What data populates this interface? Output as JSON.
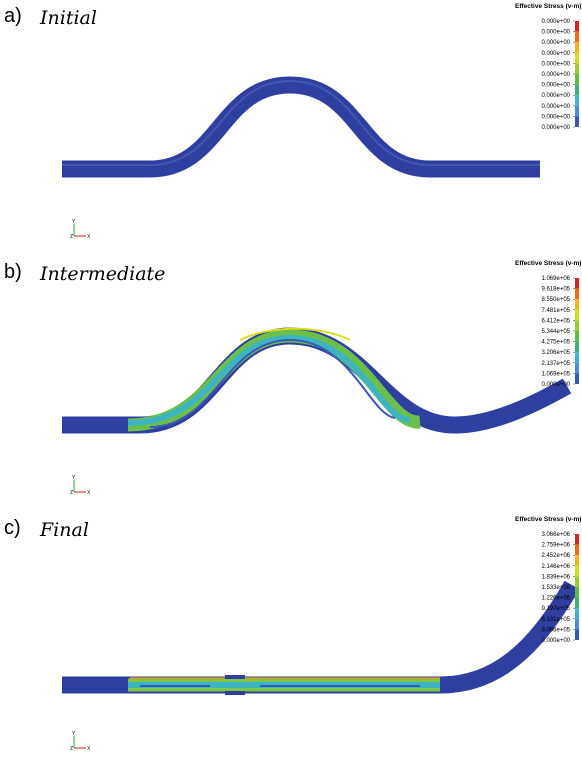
{
  "panels": [
    {
      "label": "a)",
      "title": "Initial",
      "legend": {
        "title": "Effective Stress (v-m)",
        "ticks": [
          "0.000e+00",
          "0.000e+00",
          "0.000e+00",
          "0.000e+00",
          "0.000e+00",
          "0.000e+00",
          "0.000e+00",
          "0.000e+00",
          "0.000e+00",
          "0.000e+00",
          "0.000e+00"
        ]
      },
      "axes": {
        "y": "Y",
        "z": "Z",
        "x": "X"
      }
    },
    {
      "label": "b)",
      "title": "Intermediate",
      "legend": {
        "title": "Effective Stress (v-m)",
        "ticks": [
          "1.069e+06",
          "9.618e+05",
          "8.550e+05",
          "7.481e+05",
          "6.412e+05",
          "5.344e+05",
          "4.275e+05",
          "3.206e+05",
          "2.137e+05",
          "1.069e+05",
          "0.000e+00"
        ]
      },
      "axes": {
        "y": "Y",
        "z": "Z",
        "x": "X"
      }
    },
    {
      "label": "c)",
      "title": "Final",
      "legend": {
        "title": "Effective Stress (v-m)",
        "ticks": [
          "3.066e+06",
          "2.759e+06",
          "2.452e+06",
          "2.146e+06",
          "1.839e+06",
          "1.533e+06",
          "1.226e+06",
          "9.197e+05",
          "6.131e+05",
          "3.066e+05",
          "0.000e+00"
        ]
      },
      "axes": {
        "y": "Y",
        "z": "Z",
        "x": "X"
      }
    }
  ]
}
